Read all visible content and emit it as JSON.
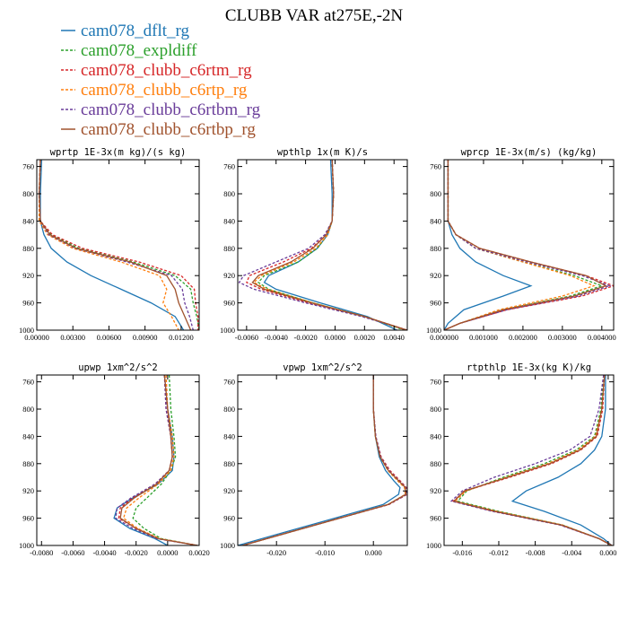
{
  "figure": {
    "title": "CLUBB VAR at275E,-2N"
  },
  "legend": [
    {
      "label": "cam078_dflt_rg",
      "color": "#1f77b4",
      "dash": false
    },
    {
      "label": "cam078_expldiff",
      "color": "#2ca02c",
      "dash": true
    },
    {
      "label": "cam078_clubb_c6rtm_rg",
      "color": "#d62728",
      "dash": true
    },
    {
      "label": "cam078_clubb_c6rtp_rg",
      "color": "#ff7f0e",
      "dash": true
    },
    {
      "label": "cam078_clubb_c6rtbm_rg",
      "color": "#6a3d9a",
      "dash": true
    },
    {
      "label": "cam078_clubb_c6rtbp_rg",
      "color": "#a0522d",
      "dash": false
    }
  ],
  "chart_data": [
    {
      "type": "line",
      "title": "wprtp  1E-3x(m kg)/(s kg)",
      "xlim": [
        0,
        0.0135
      ],
      "ylim": [
        1000,
        750
      ],
      "xticks": [
        0,
        0.003,
        0.006,
        0.009,
        0.012
      ],
      "xtick_labels": [
        "0.00000",
        "0.00300",
        "0.00600",
        "0.00900",
        "0.01200"
      ],
      "yticks": [
        760,
        800,
        840,
        880,
        920,
        960,
        1000
      ],
      "y": [
        750,
        800,
        840,
        860,
        880,
        900,
        920,
        940,
        960,
        980,
        1000
      ],
      "series": [
        {
          "name": "cam078_dflt_rg",
          "values": [
            0.0004,
            0.0003,
            0.0003,
            0.0006,
            0.0012,
            0.0025,
            0.0045,
            0.007,
            0.0095,
            0.0115,
            0.0122
          ]
        },
        {
          "name": "cam078_expldiff",
          "values": [
            0.0003,
            0.0002,
            0.0003,
            0.0012,
            0.0035,
            0.008,
            0.0115,
            0.0128,
            0.013,
            0.0133,
            0.0135
          ]
        },
        {
          "name": "cam078_clubb_c6rtm_rg",
          "values": [
            0.0003,
            0.0002,
            0.0003,
            0.0013,
            0.0038,
            0.0085,
            0.012,
            0.0131,
            0.0132,
            0.0134,
            0.0134
          ]
        },
        {
          "name": "cam078_clubb_c6rtp_rg",
          "values": [
            0.0003,
            0.0002,
            0.0002,
            0.0009,
            0.003,
            0.007,
            0.0102,
            0.0108,
            0.0105,
            0.0112,
            0.0118
          ]
        },
        {
          "name": "cam078_clubb_c6rtbm_rg",
          "values": [
            0.0003,
            0.0002,
            0.0003,
            0.001,
            0.0032,
            0.0075,
            0.0112,
            0.0121,
            0.0123,
            0.0127,
            0.013
          ]
        },
        {
          "name": "cam078_clubb_c6rtbp_rg",
          "values": [
            0.0003,
            0.0002,
            0.0003,
            0.0011,
            0.0033,
            0.0078,
            0.0108,
            0.0115,
            0.0118,
            0.0123,
            0.0128
          ]
        }
      ]
    },
    {
      "type": "line",
      "title": "wpthlp  1x(m K)/s",
      "xlim": [
        -0.0066,
        0.0049
      ],
      "ylim": [
        1000,
        750
      ],
      "xticks": [
        -0.006,
        -0.004,
        -0.002,
        0,
        0.002,
        0.004
      ],
      "xtick_labels": [
        "-0.0060",
        "-0.0040",
        "-0.0020",
        "0.0000",
        "0.0020",
        "0.0040"
      ],
      "yticks": [
        760,
        800,
        840,
        880,
        920,
        960,
        1000
      ],
      "y": [
        750,
        800,
        840,
        860,
        880,
        900,
        920,
        930,
        940,
        960,
        980,
        1000
      ],
      "series": [
        {
          "name": "cam078_dflt_rg",
          "values": [
            -0.0003,
            -0.0002,
            -0.0002,
            -0.0005,
            -0.0012,
            -0.0025,
            -0.0045,
            -0.0048,
            -0.004,
            -0.001,
            0.0022,
            0.0042
          ]
        },
        {
          "name": "cam078_expldiff",
          "values": [
            -0.0002,
            -0.0001,
            -0.0002,
            -0.0005,
            -0.0012,
            -0.0025,
            -0.0048,
            -0.0052,
            -0.0045,
            -0.0015,
            0.002,
            0.0047
          ]
        },
        {
          "name": "cam078_clubb_c6rtm_rg",
          "values": [
            -0.0002,
            -0.0001,
            -0.0002,
            -0.0006,
            -0.0016,
            -0.0035,
            -0.0058,
            -0.006,
            -0.005,
            -0.0018,
            0.002,
            0.0049
          ]
        },
        {
          "name": "cam078_clubb_c6rtp_rg",
          "values": [
            -0.0002,
            -0.0001,
            -0.0002,
            -0.0005,
            -0.0013,
            -0.0028,
            -0.005,
            -0.0055,
            -0.0046,
            -0.0015,
            0.002,
            0.0048
          ]
        },
        {
          "name": "cam078_clubb_c6rtbm_rg",
          "values": [
            -0.0002,
            -0.0001,
            -0.0002,
            -0.0007,
            -0.0018,
            -0.004,
            -0.0062,
            -0.0065,
            -0.0055,
            -0.002,
            0.0018,
            0.0049
          ]
        },
        {
          "name": "cam078_clubb_c6rtbp_rg",
          "values": [
            -0.0002,
            -0.0001,
            -0.0002,
            -0.0006,
            -0.0015,
            -0.003,
            -0.0052,
            -0.0056,
            -0.0048,
            -0.0016,
            0.002,
            0.0049
          ]
        }
      ]
    },
    {
      "type": "line",
      "title": "wprcp  1E-3x(m/s) (kg/kg)",
      "xlim": [
        0,
        0.0043
      ],
      "ylim": [
        1000,
        750
      ],
      "xticks": [
        0,
        0.001,
        0.002,
        0.003,
        0.004
      ],
      "xtick_labels": [
        "0.000000",
        "0.001000",
        "0.002000",
        "0.003000",
        "0.004000"
      ],
      "yticks": [
        760,
        800,
        840,
        880,
        920,
        960,
        1000
      ],
      "y": [
        750,
        800,
        840,
        860,
        880,
        900,
        920,
        935,
        950,
        970,
        990,
        1000
      ],
      "series": [
        {
          "name": "cam078_dflt_rg",
          "values": [
            0.0001,
            0.0001,
            0.0001,
            0.0002,
            0.0004,
            0.0008,
            0.0015,
            0.0022,
            0.0015,
            0.0005,
            0.0001,
            0.0
          ]
        },
        {
          "name": "cam078_expldiff",
          "values": [
            0.0001,
            0.0001,
            0.0001,
            0.0003,
            0.0008,
            0.002,
            0.0033,
            0.004,
            0.0032,
            0.0015,
            0.0004,
            0.0
          ]
        },
        {
          "name": "cam078_clubb_c6rtm_rg",
          "values": [
            0.0001,
            0.0001,
            0.0001,
            0.0003,
            0.0009,
            0.0022,
            0.0036,
            0.0043,
            0.0035,
            0.0016,
            0.0004,
            0.0
          ]
        },
        {
          "name": "cam078_clubb_c6rtp_rg",
          "values": [
            0.0001,
            0.0001,
            0.0001,
            0.0003,
            0.0008,
            0.002,
            0.0032,
            0.0038,
            0.003,
            0.0014,
            0.0004,
            0.0
          ]
        },
        {
          "name": "cam078_clubb_c6rtbm_rg",
          "values": [
            0.0001,
            0.0001,
            0.0001,
            0.0003,
            0.0008,
            0.0021,
            0.0035,
            0.0042,
            0.0034,
            0.0016,
            0.0004,
            0.0
          ]
        },
        {
          "name": "cam078_clubb_c6rtbp_rg",
          "values": [
            0.0001,
            0.0001,
            0.0001,
            0.0003,
            0.0009,
            0.0022,
            0.0036,
            0.0041,
            0.0033,
            0.0015,
            0.0004,
            0.0
          ]
        }
      ]
    },
    {
      "type": "line",
      "title": "upwp  1xm^2/s^2",
      "xlim": [
        -0.0083,
        0.002
      ],
      "ylim": [
        1000,
        750
      ],
      "xticks": [
        -0.008,
        -0.006,
        -0.004,
        -0.002,
        0,
        0.002
      ],
      "xtick_labels": [
        "-0.0080",
        "-0.0060",
        "-0.0040",
        "-0.0020",
        "0.0000",
        "0.0020"
      ],
      "yticks": [
        760,
        800,
        840,
        880,
        920,
        960,
        1000
      ],
      "y": [
        750,
        800,
        840,
        870,
        890,
        910,
        930,
        945,
        960,
        975,
        990,
        1000
      ],
      "series": [
        {
          "name": "cam078_dflt_rg",
          "values": [
            -0.0002,
            0.0,
            0.0003,
            0.0004,
            0.0003,
            -0.0006,
            -0.0022,
            -0.0032,
            -0.0034,
            -0.0024,
            -0.0008,
            0.0
          ]
        },
        {
          "name": "cam078_expldiff",
          "values": [
            0.0001,
            0.0002,
            0.0004,
            0.0005,
            0.0002,
            -0.0004,
            -0.0013,
            -0.002,
            -0.0022,
            -0.0015,
            -0.0004,
            0.0019
          ]
        },
        {
          "name": "cam078_clubb_c6rtm_rg",
          "values": [
            -0.0002,
            -0.0001,
            0.0002,
            0.0003,
            0.0001,
            -0.0008,
            -0.0022,
            -0.003,
            -0.0031,
            -0.002,
            -0.0006,
            0.0019
          ]
        },
        {
          "name": "cam078_clubb_c6rtp_rg",
          "values": [
            -0.0001,
            0.0,
            0.0003,
            0.0004,
            0.0002,
            -0.0006,
            -0.0018,
            -0.0026,
            -0.0028,
            -0.0019,
            -0.0005,
            0.0019
          ]
        },
        {
          "name": "cam078_clubb_c6rtbm_rg",
          "values": [
            -0.0002,
            -0.0001,
            0.0002,
            0.0003,
            0.0001,
            -0.0008,
            -0.0023,
            -0.0032,
            -0.0033,
            -0.0022,
            -0.0007,
            0.0019
          ]
        },
        {
          "name": "cam078_clubb_c6rtbp_rg",
          "values": [
            -0.0002,
            0.0,
            0.0002,
            0.0003,
            0.0001,
            -0.0007,
            -0.0021,
            -0.0029,
            -0.003,
            -0.002,
            -0.0006,
            0.0019
          ]
        }
      ]
    },
    {
      "type": "line",
      "title": "vpwp  1xm^2/s^2",
      "xlim": [
        -0.028,
        0.007
      ],
      "ylim": [
        1000,
        750
      ],
      "xticks": [
        -0.02,
        -0.01,
        0
      ],
      "xtick_labels": [
        "-0.020",
        "-0.010",
        "0.000"
      ],
      "yticks": [
        760,
        800,
        840,
        880,
        920,
        960,
        1000
      ],
      "y": [
        750,
        800,
        840,
        870,
        890,
        905,
        915,
        925,
        940,
        960,
        980,
        1000
      ],
      "series": [
        {
          "name": "cam078_dflt_rg",
          "values": [
            0.0,
            0.0,
            0.0004,
            0.0012,
            0.0025,
            0.0042,
            0.0055,
            0.0052,
            0.002,
            -0.008,
            -0.018,
            -0.028
          ]
        },
        {
          "name": "cam078_expldiff",
          "values": [
            0.0,
            0.0,
            0.0004,
            0.0014,
            0.003,
            0.005,
            0.0065,
            0.0068,
            0.003,
            -0.007,
            -0.017,
            -0.027
          ]
        },
        {
          "name": "cam078_clubb_c6rtm_rg",
          "values": [
            0.0,
            0.0,
            0.0005,
            0.0016,
            0.0034,
            0.0055,
            0.0068,
            0.007,
            0.0032,
            -0.007,
            -0.017,
            -0.027
          ]
        },
        {
          "name": "cam078_clubb_c6rtp_rg",
          "values": [
            0.0,
            0.0,
            0.0004,
            0.0014,
            0.003,
            0.005,
            0.0064,
            0.0066,
            0.003,
            -0.007,
            -0.017,
            -0.027
          ]
        },
        {
          "name": "cam078_clubb_c6rtbm_rg",
          "values": [
            0.0,
            0.0,
            0.0005,
            0.0015,
            0.0032,
            0.0053,
            0.0067,
            0.0069,
            0.0031,
            -0.007,
            -0.017,
            -0.027
          ]
        },
        {
          "name": "cam078_clubb_c6rtbp_rg",
          "values": [
            0.0,
            0.0,
            0.0004,
            0.0014,
            0.0031,
            0.0052,
            0.0066,
            0.0067,
            0.003,
            -0.007,
            -0.017,
            -0.027
          ]
        }
      ]
    },
    {
      "type": "line",
      "title": "rtpthlp  1E-3x(kg K)/kg",
      "xlim": [
        -0.018,
        0.0006
      ],
      "ylim": [
        1000,
        750
      ],
      "xticks": [
        -0.016,
        -0.012,
        -0.008,
        -0.004,
        0
      ],
      "xtick_labels": [
        "-0.016",
        "-0.012",
        "-0.008",
        "-0.004",
        "0.000"
      ],
      "yticks": [
        760,
        800,
        840,
        880,
        920,
        960,
        1000
      ],
      "y": [
        750,
        800,
        840,
        860,
        880,
        900,
        920,
        935,
        950,
        970,
        990,
        1000
      ],
      "series": [
        {
          "name": "cam078_dflt_rg",
          "values": [
            -0.0003,
            -0.0003,
            -0.0007,
            -0.0015,
            -0.003,
            -0.0055,
            -0.009,
            -0.0105,
            -0.007,
            -0.003,
            -0.0005,
            0.0004
          ]
        },
        {
          "name": "cam078_expldiff",
          "values": [
            -0.0005,
            -0.0008,
            -0.0015,
            -0.0035,
            -0.007,
            -0.0115,
            -0.0155,
            -0.0165,
            -0.012,
            -0.005,
            -0.001,
            0.0004
          ]
        },
        {
          "name": "cam078_clubb_c6rtm_rg",
          "values": [
            -0.0004,
            -0.0006,
            -0.0012,
            -0.003,
            -0.0062,
            -0.0108,
            -0.0157,
            -0.017,
            -0.0125,
            -0.0052,
            -0.001,
            0.0004
          ]
        },
        {
          "name": "cam078_clubb_c6rtp_rg",
          "values": [
            -0.0004,
            -0.0007,
            -0.0014,
            -0.0033,
            -0.0066,
            -0.0112,
            -0.0156,
            -0.0168,
            -0.0122,
            -0.005,
            -0.001,
            0.0004
          ]
        },
        {
          "name": "cam078_clubb_c6rtbm_rg",
          "values": [
            -0.0005,
            -0.001,
            -0.002,
            -0.0042,
            -0.008,
            -0.0125,
            -0.016,
            -0.0172,
            -0.0127,
            -0.0053,
            -0.001,
            0.0004
          ]
        },
        {
          "name": "cam078_clubb_c6rtbp_rg",
          "values": [
            -0.0004,
            -0.0007,
            -0.0013,
            -0.0031,
            -0.0064,
            -0.011,
            -0.0158,
            -0.0169,
            -0.0124,
            -0.0051,
            -0.001,
            0.0004
          ]
        }
      ]
    }
  ]
}
